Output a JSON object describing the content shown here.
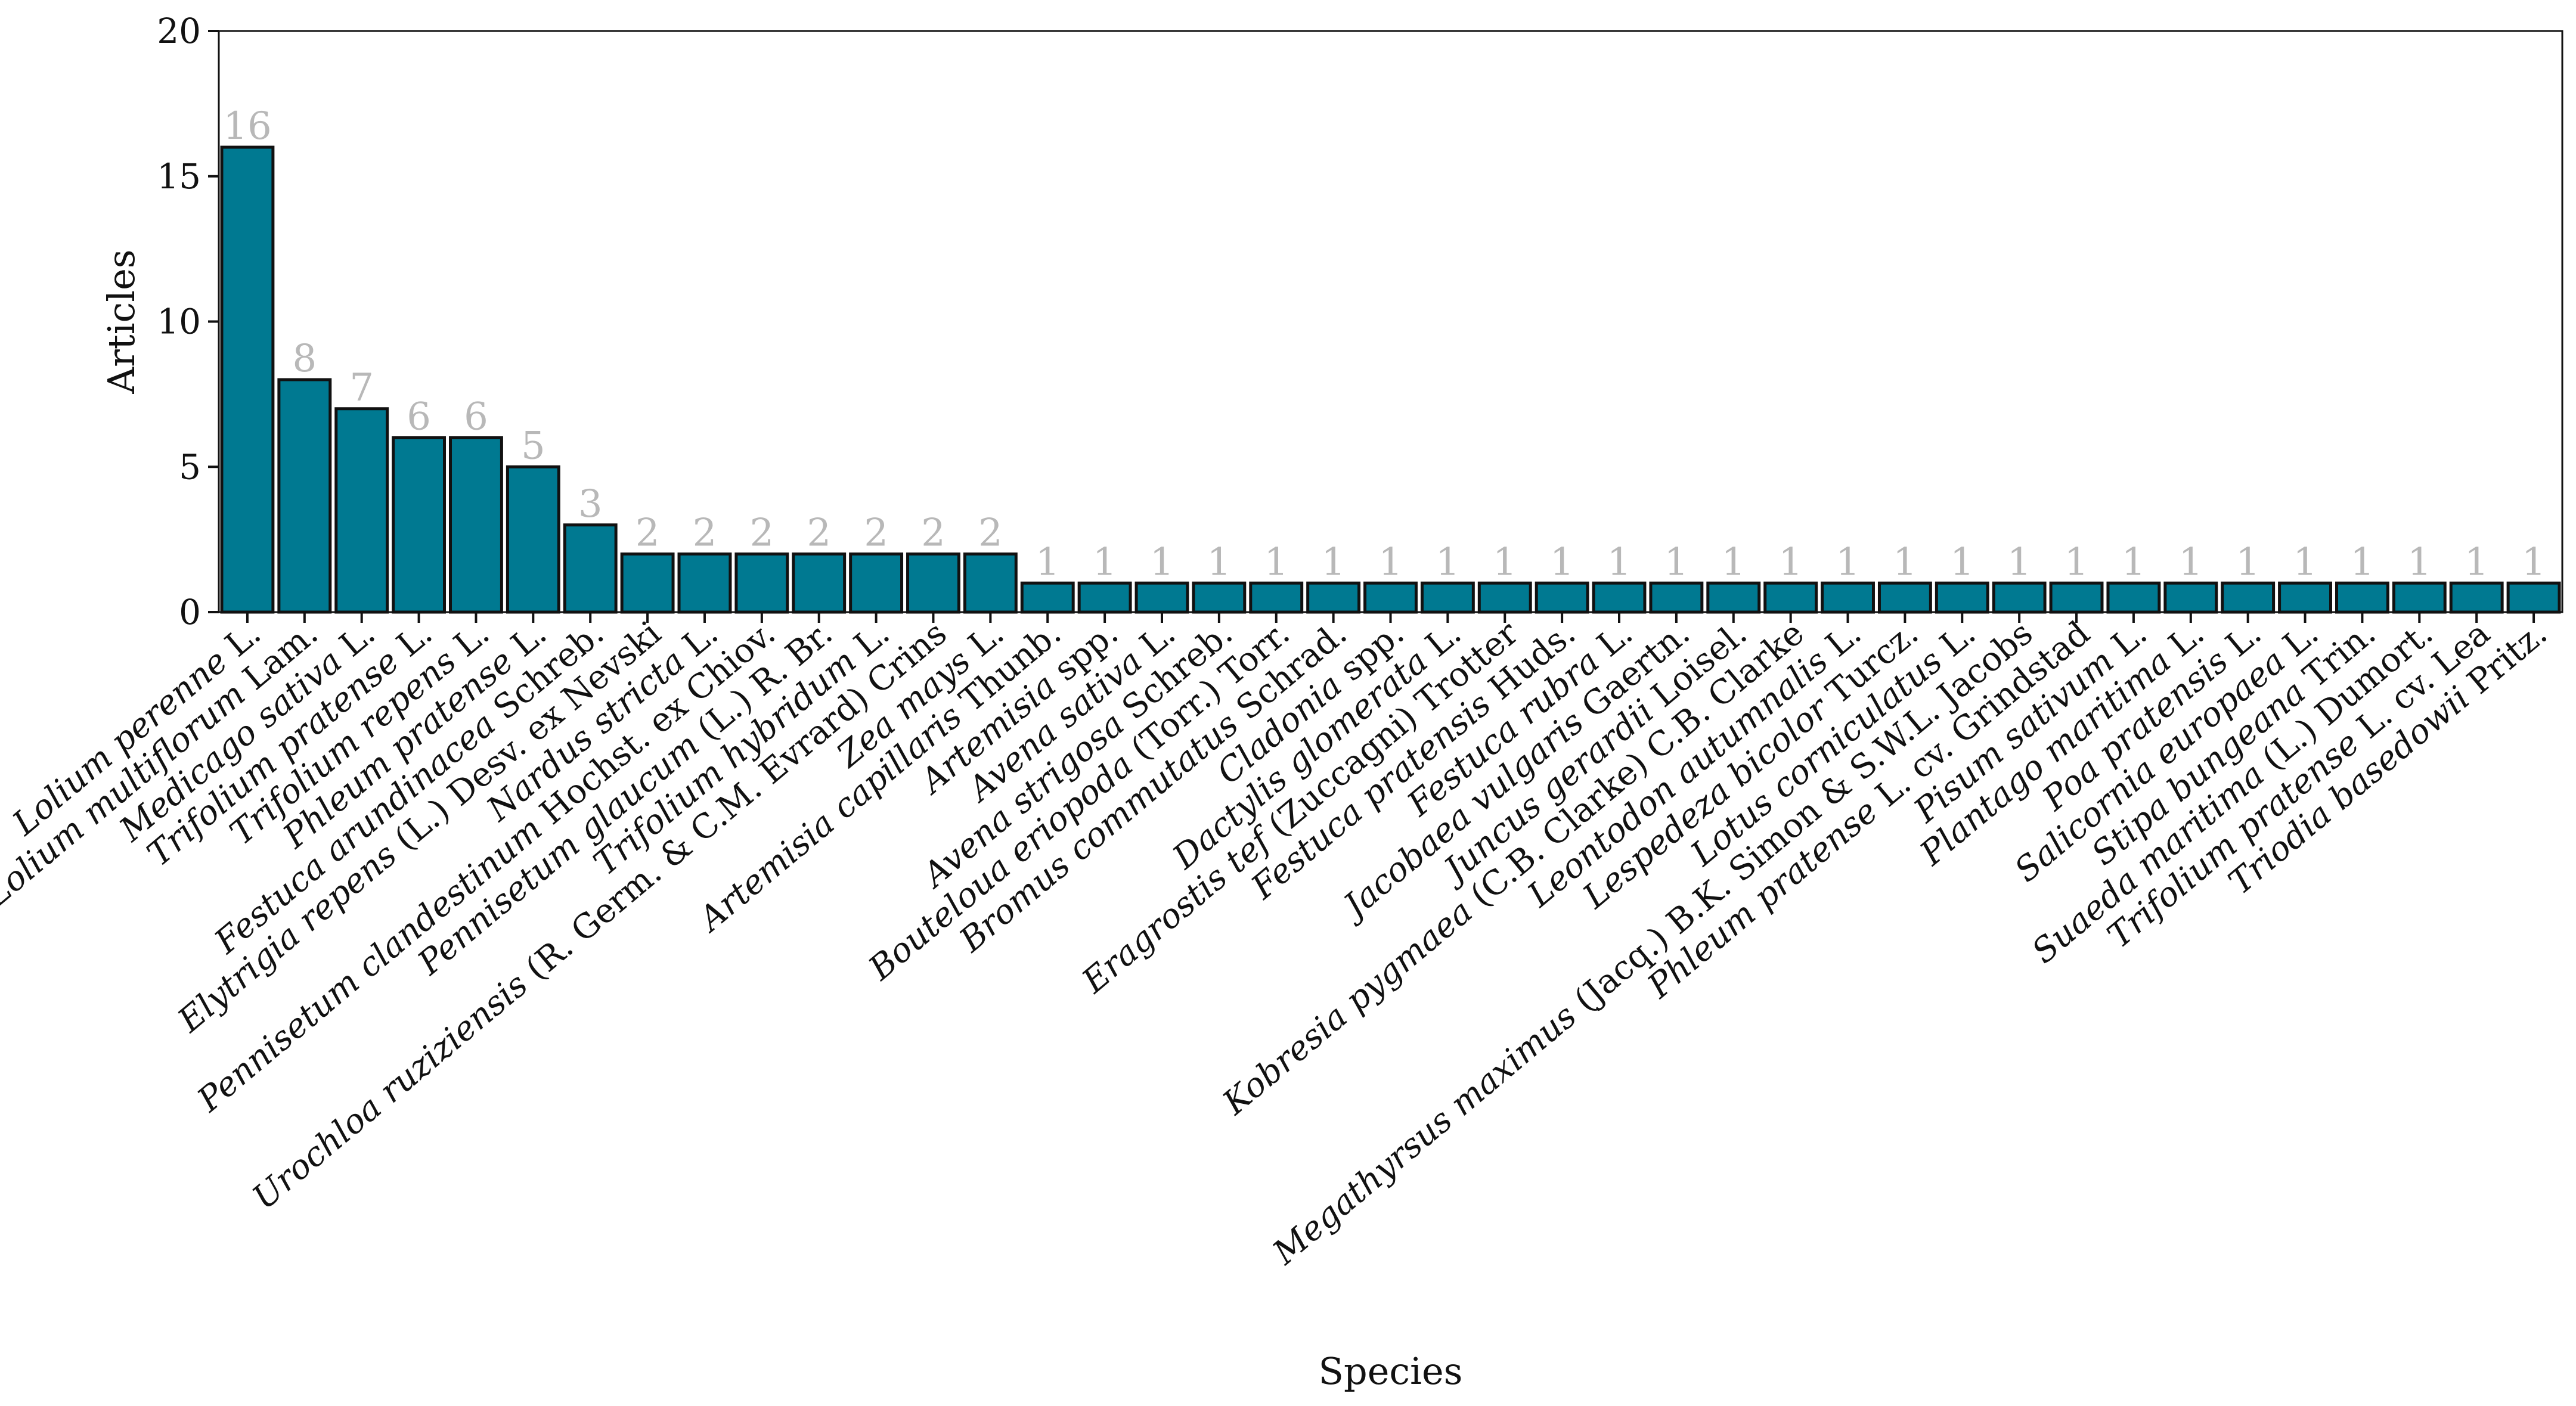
{
  "chart_data": {
    "type": "bar",
    "xlabel": "Species",
    "ylabel": "Articles",
    "ylim": [
      0,
      20
    ],
    "yticks": [
      0,
      5,
      10,
      15,
      20
    ],
    "grid": false,
    "data_labels": true,
    "colors": {
      "bar_fill": "#007991",
      "bar_edge": "#111111",
      "data_label": "#b8b8b8",
      "axis": "#111111"
    },
    "categories": [
      {
        "italic": "Lolium perenne",
        "plain": " L."
      },
      {
        "italic": "Lolium multiflorum",
        "plain": " Lam."
      },
      {
        "italic": "Medicago sativa",
        "plain": " L."
      },
      {
        "italic": "Trifolium pratense",
        "plain": " L."
      },
      {
        "italic": "Trifolium repens",
        "plain": " L."
      },
      {
        "italic": "Phleum pratense",
        "plain": " L."
      },
      {
        "italic": "Festuca arundinacea",
        "plain": " Schreb."
      },
      {
        "italic": "Elytrigia repens",
        "plain": " (L.) Desv. ex Nevski"
      },
      {
        "italic": "Nardus stricta",
        "plain": " L."
      },
      {
        "italic": "Pennisetum clandestinum",
        "plain": " Hochst. ex Chiov."
      },
      {
        "italic": "Pennisetum glaucum",
        "plain": " (L.) R. Br."
      },
      {
        "italic": "Trifolium hybridum",
        "plain": " L."
      },
      {
        "italic": "Urochloa ruziziensis",
        "plain": " (R. Germ. & C.M. Evrard) Crins"
      },
      {
        "italic": "Zea mays",
        "plain": " L."
      },
      {
        "italic": "Artemisia capillaris",
        "plain": " Thunb."
      },
      {
        "italic": "Artemisia",
        "plain": " spp."
      },
      {
        "italic": "Avena sativa",
        "plain": " L."
      },
      {
        "italic": "Avena strigosa",
        "plain": " Schreb."
      },
      {
        "italic": "Bouteloua eriopoda",
        "plain": " (Torr.) Torr."
      },
      {
        "italic": "Bromus commutatus",
        "plain": " Schrad."
      },
      {
        "italic": "Cladonia",
        "plain": " spp."
      },
      {
        "italic": "Dactylis glomerata",
        "plain": " L."
      },
      {
        "italic": "Eragrostis tef",
        "plain": " (Zuccagni) Trotter"
      },
      {
        "italic": "Festuca pratensis",
        "plain": " Huds."
      },
      {
        "italic": "Festuca rubra",
        "plain": " L."
      },
      {
        "italic": "Jacobaea vulgaris",
        "plain": " Gaertn."
      },
      {
        "italic": "Juncus gerardii",
        "plain": " Loisel."
      },
      {
        "italic": "Kobresia pygmaea",
        "plain": " (C.B. Clarke) C.B. Clarke"
      },
      {
        "italic": "Leontodon autumnalis",
        "plain": " L."
      },
      {
        "italic": "Lespedeza bicolor",
        "plain": " Turcz."
      },
      {
        "italic": "Lotus corniculatus",
        "plain": " L."
      },
      {
        "italic": "Megathyrsus maximus",
        "plain": " (Jacq.) B.K. Simon & S.W.L. Jacobs"
      },
      {
        "italic": "Phleum pratense",
        "plain": " L. cv. Grindstad"
      },
      {
        "italic": "Pisum sativum",
        "plain": " L."
      },
      {
        "italic": "Plantago maritima",
        "plain": " L."
      },
      {
        "italic": "Poa pratensis",
        "plain": " L."
      },
      {
        "italic": "Salicornia europaea",
        "plain": " L."
      },
      {
        "italic": "Stipa bungeana",
        "plain": " Trin."
      },
      {
        "italic": "Suaeda maritima",
        "plain": " (L.) Dumort."
      },
      {
        "italic": "Trifolium pratense",
        "plain": "  L. cv. Lea"
      },
      {
        "italic": "Triodia basedowii",
        "plain": "  Pritz."
      }
    ],
    "values": [
      16,
      8,
      7,
      6,
      6,
      5,
      3,
      2,
      2,
      2,
      2,
      2,
      2,
      2,
      1,
      1,
      1,
      1,
      1,
      1,
      1,
      1,
      1,
      1,
      1,
      1,
      1,
      1,
      1,
      1,
      1,
      1,
      1,
      1,
      1,
      1,
      1,
      1,
      1,
      1,
      1
    ]
  }
}
